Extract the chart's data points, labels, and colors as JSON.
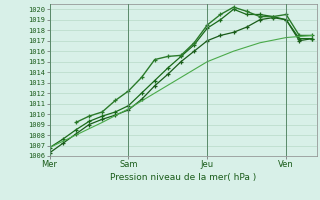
{
  "bg_color": "#d8f0e8",
  "grid_color": "#b0d4c0",
  "title": "Pression niveau de la mer( hPa )",
  "xlabel_ticks": [
    "Mer",
    "Sam",
    "Jeu",
    "Ven"
  ],
  "xlabel_tick_positions": [
    0,
    36,
    72,
    108
  ],
  "ylim": [
    1006,
    1020.5
  ],
  "xlim": [
    0,
    122
  ],
  "yticks": [
    1006,
    1007,
    1008,
    1009,
    1010,
    1011,
    1012,
    1013,
    1014,
    1015,
    1016,
    1017,
    1018,
    1019,
    1020
  ],
  "series": [
    {
      "x": [
        0,
        6,
        12,
        18,
        24,
        30,
        36,
        42,
        48,
        54,
        60,
        66,
        72,
        78,
        84,
        90,
        96,
        102,
        108,
        114,
        120
      ],
      "y": [
        1006.3,
        1007.2,
        1008.1,
        1009.0,
        1009.5,
        1009.9,
        1010.4,
        1011.4,
        1012.7,
        1013.8,
        1015.0,
        1016.0,
        1017.0,
        1017.5,
        1017.8,
        1018.3,
        1019.0,
        1019.2,
        1019.0,
        1017.0,
        1017.2
      ],
      "color": "#1a5c1a",
      "lw": 0.9,
      "marker": "+"
    },
    {
      "x": [
        0,
        6,
        12,
        18,
        24,
        30,
        36,
        42,
        48,
        54,
        60,
        66,
        72,
        78,
        84,
        90,
        96,
        102,
        108,
        114,
        120
      ],
      "y": [
        1006.8,
        1007.6,
        1008.5,
        1009.3,
        1009.8,
        1010.2,
        1010.8,
        1012.0,
        1013.2,
        1014.4,
        1015.5,
        1016.6,
        1018.2,
        1019.0,
        1020.0,
        1019.5,
        1019.5,
        1019.3,
        1019.0,
        1017.2,
        1017.2
      ],
      "color": "#1a6a1a",
      "lw": 0.9,
      "marker": "+"
    },
    {
      "x": [
        12,
        18,
        24,
        30,
        36,
        42,
        48,
        54,
        60,
        66,
        72,
        78,
        84,
        90,
        96,
        102,
        108,
        114,
        120
      ],
      "y": [
        1009.2,
        1009.8,
        1010.2,
        1011.3,
        1012.2,
        1013.5,
        1015.2,
        1015.5,
        1015.6,
        1016.8,
        1018.5,
        1019.5,
        1020.2,
        1019.8,
        1019.3,
        1019.3,
        1019.5,
        1017.5,
        1017.5
      ],
      "color": "#2a7a2a",
      "lw": 1.0,
      "marker": "+"
    },
    {
      "x": [
        0,
        12,
        24,
        36,
        48,
        60,
        72,
        84,
        96,
        108,
        120
      ],
      "y": [
        1006.8,
        1008.0,
        1009.2,
        1010.5,
        1012.0,
        1013.5,
        1015.0,
        1016.0,
        1016.8,
        1017.3,
        1017.5
      ],
      "color": "#4aaa4a",
      "lw": 0.8,
      "marker": null
    }
  ]
}
